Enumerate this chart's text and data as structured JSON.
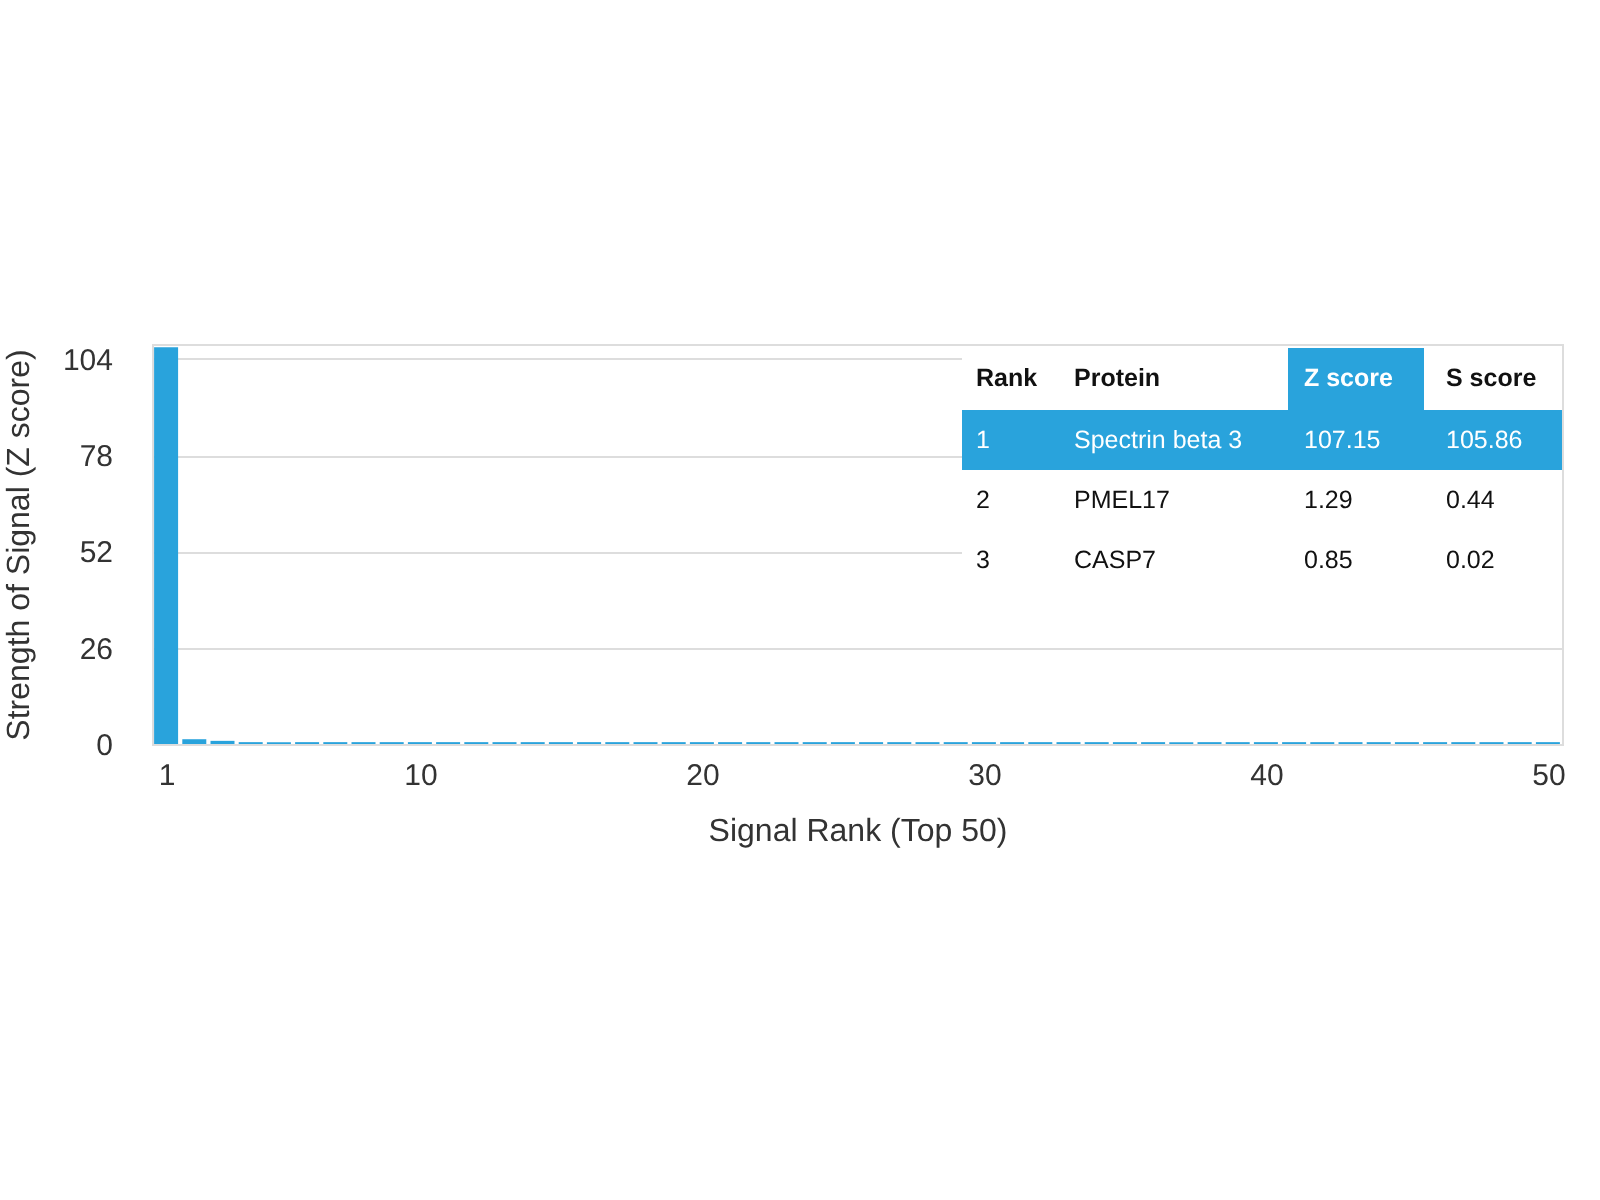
{
  "chart_data": {
    "type": "bar",
    "xlabel": "Signal Rank (Top 50)",
    "ylabel": "Strength of Signal (Z score)",
    "x": [
      1,
      2,
      3,
      4,
      5,
      6,
      7,
      8,
      9,
      10,
      11,
      12,
      13,
      14,
      15,
      16,
      17,
      18,
      19,
      20,
      21,
      22,
      23,
      24,
      25,
      26,
      27,
      28,
      29,
      30,
      31,
      32,
      33,
      34,
      35,
      36,
      37,
      38,
      39,
      40,
      41,
      42,
      43,
      44,
      45,
      46,
      47,
      48,
      49,
      50
    ],
    "series": [
      {
        "color": "#29a3dc",
        "values": [
          107.15,
          1.29,
          0.85,
          0.5,
          0.5,
          0.5,
          0.5,
          0.5,
          0.5,
          0.5,
          0.5,
          0.5,
          0.5,
          0.5,
          0.5,
          0.5,
          0.5,
          0.5,
          0.5,
          0.5,
          0.5,
          0.5,
          0.5,
          0.5,
          0.5,
          0.5,
          0.5,
          0.5,
          0.5,
          0.5,
          0.5,
          0.5,
          0.5,
          0.5,
          0.5,
          0.5,
          0.5,
          0.5,
          0.5,
          0.5,
          0.5,
          0.5,
          0.5,
          0.5,
          0.5,
          0.5,
          0.5,
          0.5,
          0.5,
          0.5
        ]
      }
    ],
    "xlim": [
      0.5,
      50.5
    ],
    "xticks": [
      1,
      10,
      20,
      30,
      40,
      50
    ],
    "ylim": [
      0,
      108
    ],
    "yticks": [
      0,
      26,
      52,
      78,
      104
    ],
    "grid": "y",
    "annotations": [
      "Rank",
      "Protein",
      "Z score",
      "S score",
      "1",
      "Spectrin beta 3",
      "107.15",
      "105.86",
      "2",
      "PMEL17",
      "1.29",
      "0.44",
      "3",
      "CASP7",
      "0.85",
      "0.02"
    ]
  }
}
